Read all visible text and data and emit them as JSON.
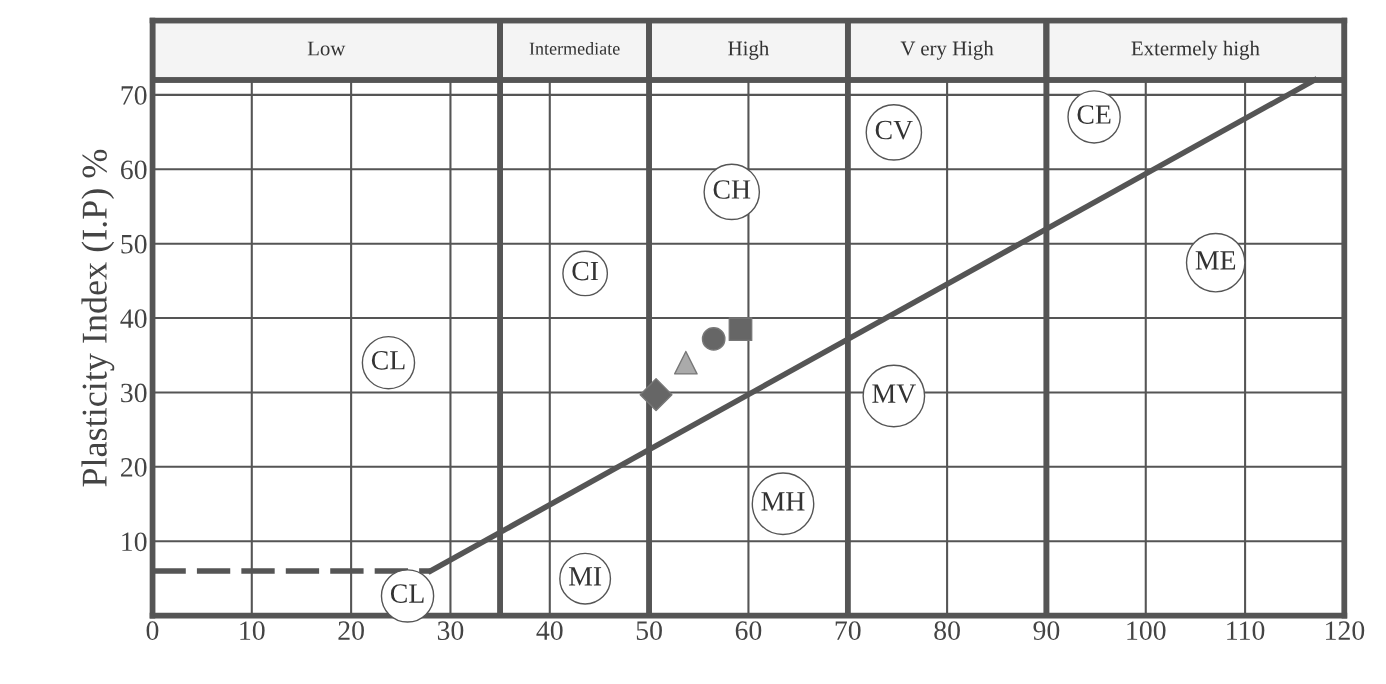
{
  "chart_data": {
    "type": "scatter",
    "ylabel": "Plasticity Index (I.P) %",
    "xlim": [
      0,
      120
    ],
    "ylim": [
      0,
      80
    ],
    "xticks": [
      0,
      10,
      20,
      30,
      40,
      50,
      60,
      70,
      80,
      90,
      100,
      110,
      120
    ],
    "yticks": [
      10,
      20,
      30,
      40,
      50,
      60,
      70
    ],
    "grid": true,
    "bands": [
      {
        "axis": "x",
        "from": 0,
        "to": 35,
        "label": "Low"
      },
      {
        "axis": "x",
        "from": 35,
        "to": 50,
        "label": "Intermediate"
      },
      {
        "axis": "x",
        "from": 50,
        "to": 70,
        "label": "High"
      },
      {
        "axis": "x",
        "from": 70,
        "to": 90,
        "label": "V ery High"
      },
      {
        "axis": "x",
        "from": 90,
        "to": 120,
        "label": "Extermely high"
      }
    ],
    "series": [
      {
        "type": "line",
        "x": [
          0,
          28
        ],
        "values": [
          6,
          6
        ],
        "color": "#555555",
        "line_style": "dashed",
        "marker": "none"
      },
      {
        "type": "line",
        "x": [
          28,
          117
        ],
        "values": [
          6,
          72
        ],
        "color": "#555555",
        "line_style": "solid",
        "marker": "none"
      },
      {
        "x": [
          50.7
        ],
        "values": [
          29.7
        ],
        "color": "#666666",
        "marker": "diamond"
      },
      {
        "x": [
          53.7
        ],
        "values": [
          34
        ],
        "color": "#aaaaaa",
        "marker": "triangle"
      },
      {
        "x": [
          56.5
        ],
        "values": [
          37.2
        ],
        "color": "#666666",
        "marker": "circle"
      },
      {
        "x": [
          59.2
        ],
        "values": [
          38.5
        ],
        "color": "#666666",
        "marker": "square"
      }
    ],
    "annotations": [
      "CL",
      "CI",
      "CH",
      "CV",
      "CE",
      "ME",
      "MV",
      "MH",
      "MI",
      "CL"
    ]
  }
}
